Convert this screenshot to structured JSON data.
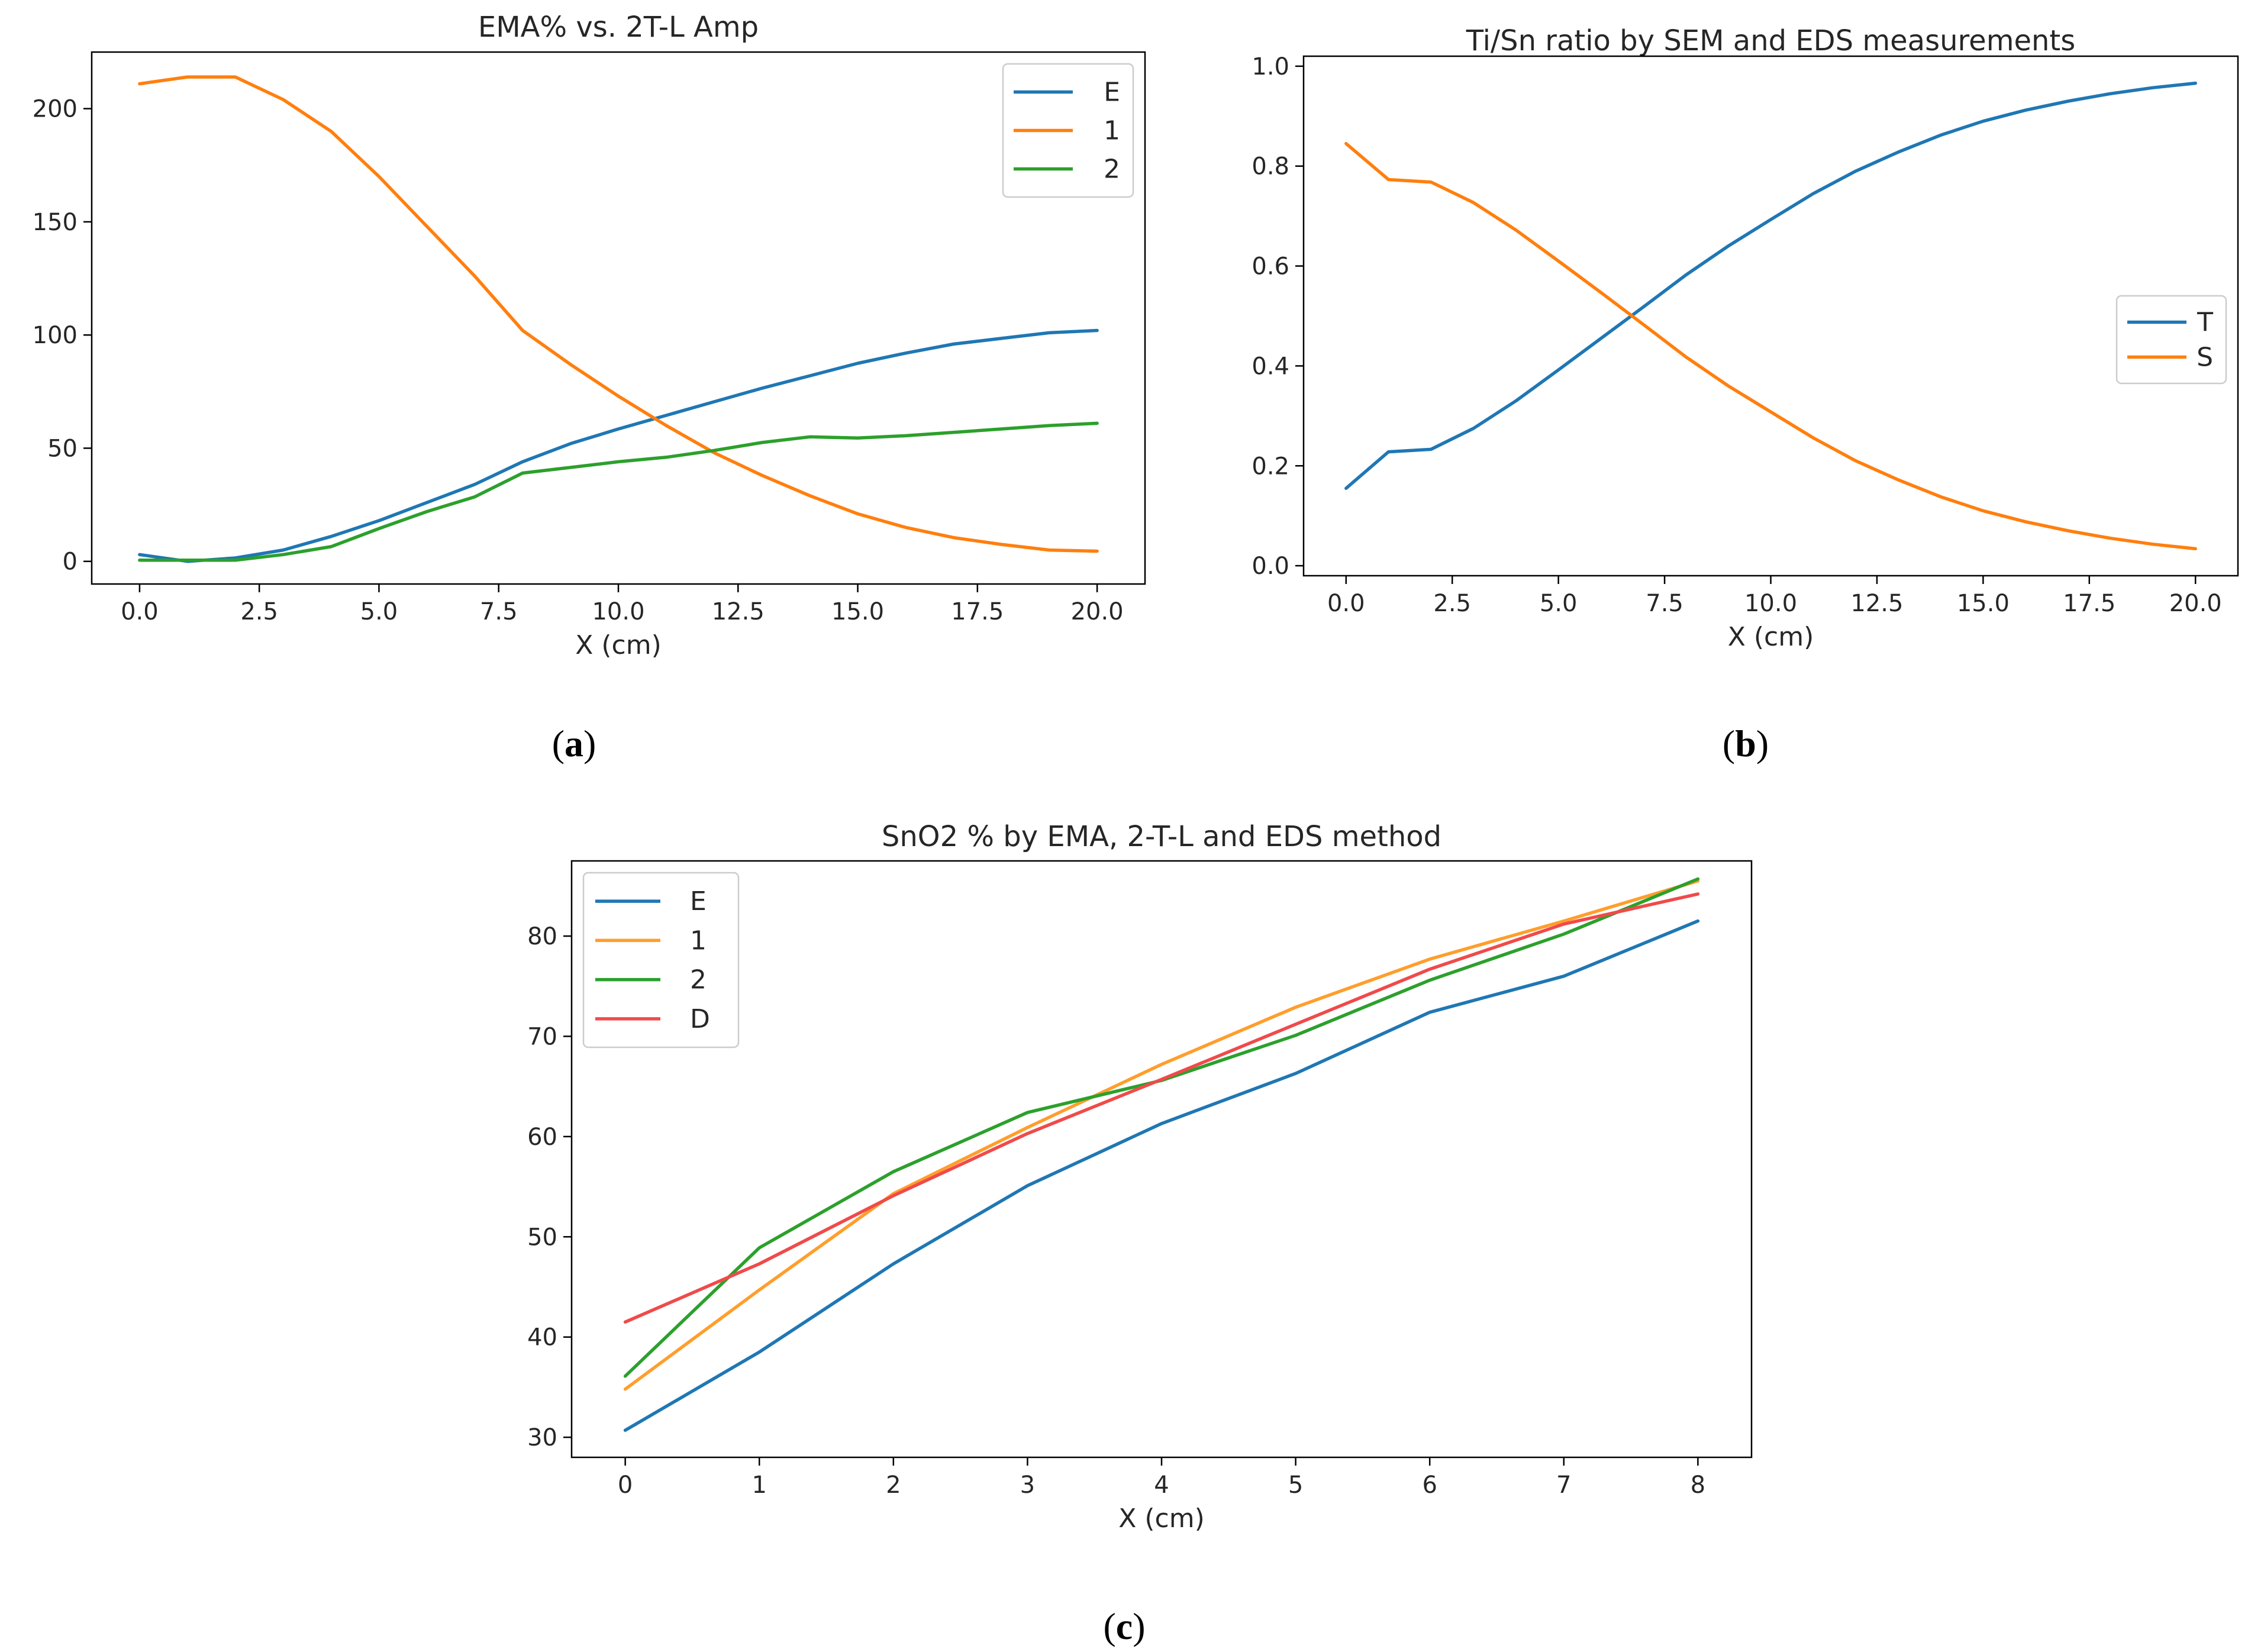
{
  "chart_data": [
    {
      "id": "a",
      "type": "line",
      "title": "EMA% vs. 2T-L Amp",
      "xlabel": "X (cm)",
      "ylabel": "",
      "caption_letter": "a",
      "xlim": [
        -1,
        21
      ],
      "ylim": [
        -10,
        225
      ],
      "xticks": [
        0,
        2.5,
        5,
        7.5,
        10,
        12.5,
        15,
        17.5,
        20
      ],
      "xtick_labels": [
        "0.0",
        "2.5",
        "5.0",
        "7.5",
        "10.0",
        "12.5",
        "15.0",
        "17.5",
        "20.0"
      ],
      "yticks": [
        0,
        50,
        100,
        150,
        200
      ],
      "ytick_labels": [
        "0",
        "50",
        "100",
        "150",
        "200"
      ],
      "legend_position": "top-right",
      "x": [
        0,
        1,
        2,
        3,
        4,
        5,
        6,
        7,
        8,
        9,
        10,
        11,
        12,
        13,
        14,
        15,
        16,
        17,
        18,
        19,
        20
      ],
      "series": [
        {
          "name": "E",
          "color": "#1f77b4",
          "values": [
            3,
            0,
            1.5,
            5,
            11,
            18,
            26,
            34,
            44,
            52,
            58.5,
            64.5,
            70.5,
            76.5,
            82,
            87.5,
            92,
            96,
            98.5,
            101,
            102
          ]
        },
        {
          "name": "1",
          "color": "#ff7f0e",
          "values": [
            211,
            214,
            214,
            204,
            190,
            170,
            148,
            126,
            102,
            87,
            73,
            60,
            48,
            38,
            29,
            21,
            15,
            10.5,
            7.5,
            5,
            4.5
          ]
        },
        {
          "name": "2",
          "color": "#2ca02c",
          "values": [
            0.5,
            0.5,
            0.5,
            3,
            6.5,
            14.5,
            22,
            28.5,
            39,
            41.5,
            44,
            46,
            49,
            52.5,
            55,
            54.5,
            55.5,
            57,
            58.5,
            60,
            61
          ]
        }
      ]
    },
    {
      "id": "b",
      "type": "line",
      "title": "Ti/Sn ratio by SEM and EDS measurements",
      "xlabel": "X (cm)",
      "ylabel": "",
      "caption_letter": "b",
      "xlim": [
        -1,
        21
      ],
      "ylim": [
        -0.02,
        1.02
      ],
      "xticks": [
        0,
        2.5,
        5,
        7.5,
        10,
        12.5,
        15,
        17.5,
        20
      ],
      "xtick_labels": [
        "0.0",
        "2.5",
        "5.0",
        "7.5",
        "10.0",
        "12.5",
        "15.0",
        "17.5",
        "20.0"
      ],
      "yticks": [
        0,
        0.2,
        0.4,
        0.6,
        0.8,
        1.0
      ],
      "ytick_labels": [
        "0.0",
        "0.2",
        "0.4",
        "0.6",
        "0.8",
        "1.0"
      ],
      "legend_position": "center-right",
      "x": [
        0,
        1,
        2,
        3,
        4,
        5,
        6,
        7,
        8,
        9,
        10,
        11,
        12,
        13,
        14,
        15,
        16,
        17,
        18,
        19,
        20
      ],
      "series": [
        {
          "name": "T",
          "color": "#1f77b4",
          "values": [
            0.155,
            0.228,
            0.233,
            0.275,
            0.33,
            0.392,
            0.455,
            0.518,
            0.582,
            0.64,
            0.693,
            0.745,
            0.79,
            0.828,
            0.862,
            0.89,
            0.912,
            0.93,
            0.945,
            0.957,
            0.966
          ]
        },
        {
          "name": "S",
          "color": "#ff7f0e",
          "values": [
            0.845,
            0.773,
            0.768,
            0.727,
            0.672,
            0.61,
            0.547,
            0.483,
            0.418,
            0.36,
            0.308,
            0.256,
            0.21,
            0.172,
            0.138,
            0.11,
            0.088,
            0.07,
            0.055,
            0.043,
            0.034
          ]
        }
      ]
    },
    {
      "id": "c",
      "type": "line",
      "title": "SnO2 % by EMA, 2-T-L  and EDS method",
      "xlabel": "X (cm)",
      "ylabel": "",
      "caption_letter": "c",
      "xlim": [
        -0.4,
        8.4
      ],
      "ylim": [
        28,
        87.5
      ],
      "xticks": [
        0,
        1,
        2,
        3,
        4,
        5,
        6,
        7,
        8
      ],
      "xtick_labels": [
        "0",
        "1",
        "2",
        "3",
        "4",
        "5",
        "6",
        "7",
        "8"
      ],
      "yticks": [
        30,
        40,
        50,
        60,
        70,
        80
      ],
      "ytick_labels": [
        "30",
        "40",
        "50",
        "60",
        "70",
        "80"
      ],
      "legend_position": "top-left",
      "x": [
        0,
        1,
        2,
        3,
        4,
        5,
        6,
        7,
        8
      ],
      "series": [
        {
          "name": "E",
          "color": "#1f77b4",
          "values": [
            30.7,
            38.5,
            47.3,
            55.1,
            61.3,
            66.3,
            72.4,
            76,
            81.5
          ]
        },
        {
          "name": "1",
          "color": "#ff9e2c",
          "values": [
            34.8,
            44.7,
            54.3,
            60.9,
            67.2,
            72.9,
            77.7,
            81.5,
            85.5
          ]
        },
        {
          "name": "2",
          "color": "#2ca02c",
          "values": [
            36.1,
            48.9,
            56.5,
            62.4,
            65.6,
            70.1,
            75.6,
            80.2,
            85.7
          ]
        },
        {
          "name": "D",
          "color": "#f04a4a",
          "values": [
            41.5,
            47.3,
            54.1,
            60.3,
            65.7,
            71.2,
            76.7,
            81.2,
            84.2
          ]
        }
      ]
    }
  ]
}
